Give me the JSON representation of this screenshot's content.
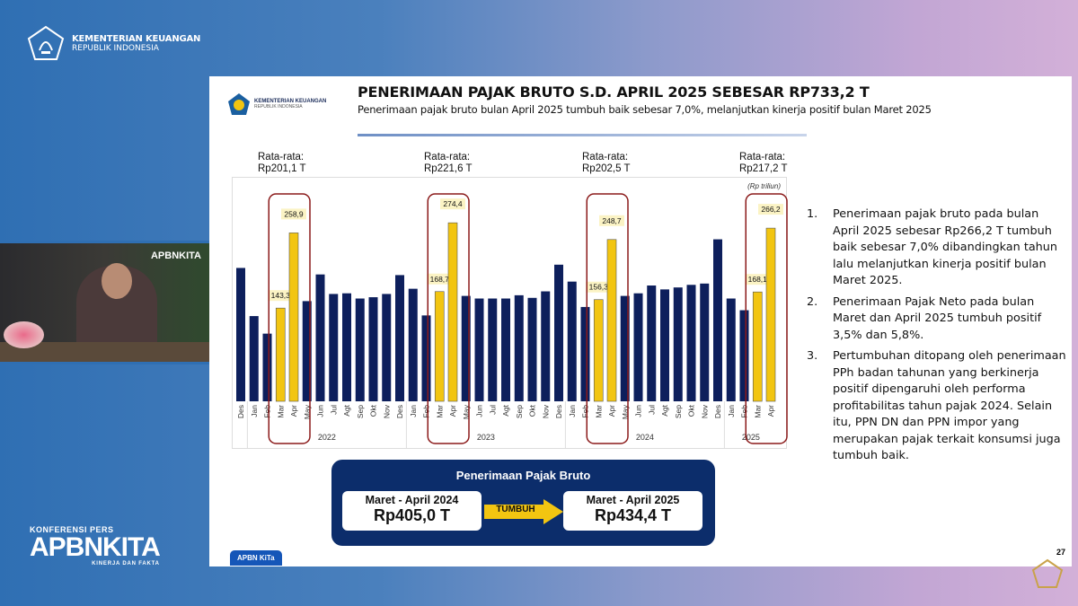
{
  "header": {
    "ministry_line1": "KEMENTERIAN KEUANGAN",
    "ministry_line2": "REPUBLIK INDONESIA"
  },
  "webcam": {
    "watermark": "APBNKITA"
  },
  "branding": {
    "konferensi": "KONFERENSI PERS",
    "apbnkita": "APBNKITA",
    "tagline": "KINERJA DAN FAKTA"
  },
  "slide": {
    "logo_line1": "KEMENTERIAN KEUANGAN",
    "logo_line2": "REPUBLIK INDONESIA",
    "title": "PENERIMAAN PAJAK BRUTO S.D. APRIL 2025 SEBESAR RP733,2 T",
    "subtitle": "Penerimaan pajak bruto bulan April 2025 tumbuh baik sebesar 7,0%, melanjutkan kinerja positif bulan Maret 2025",
    "averages": [
      {
        "label": "Rata-rata:",
        "value": "Rp201,1 T"
      },
      {
        "label": "Rata-rata:",
        "value": "Rp221,6 T"
      },
      {
        "label": "Rata-rata:",
        "value": "Rp202,5 T"
      },
      {
        "label": "Rata-rata:",
        "value": "Rp217,2 T"
      }
    ],
    "summary": {
      "title": "Penerimaan Pajak Bruto",
      "left_period": "Maret - April 2024",
      "left_value": "Rp405,0 T",
      "arrow_label": "TUMBUH",
      "right_period": "Maret - April 2025",
      "right_value": "Rp434,4 T"
    },
    "notes": [
      {
        "num": "1.",
        "text": "Penerimaan pajak bruto pada bulan April 2025 sebesar Rp266,2 T tumbuh baik sebesar 7,0% dibandingkan tahun lalu melanjutkan kinerja positif bulan Maret 2025."
      },
      {
        "num": "2.",
        "text": "Penerimaan Pajak Neto pada bulan Maret dan April 2025 tumbuh positif 3,5% dan 5,8%."
      },
      {
        "num": "3.",
        "text": "Pertumbuhan ditopang oleh penerimaan PPh badan tahunan yang berkinerja positif dipengaruhi oleh performa profitabilitas tahun pajak 2024. Selain itu, PPN DN dan PPN impor yang merupakan pajak terkait konsumsi juga tumbuh baik."
      }
    ],
    "tab_label": "APBN KiTa",
    "page_number": "27"
  },
  "chart_data": {
    "type": "bar",
    "unit_label": "(Rp triliun)",
    "categories": [
      "Des",
      "Jan",
      "Feb",
      "Mar",
      "Apr",
      "May",
      "Jun",
      "Jul",
      "Agt",
      "Sep",
      "Okt",
      "Nov",
      "Des",
      "Jan",
      "Feb",
      "Mar",
      "Apr",
      "May",
      "Jun",
      "Jul",
      "Agt",
      "Sep",
      "Okt",
      "Nov",
      "Des",
      "Jan",
      "Feb",
      "Mar",
      "Apr",
      "May",
      "Jun",
      "Jul",
      "Agt",
      "Sep",
      "Okt",
      "Nov",
      "Des",
      "Jan",
      "Feb",
      "Mar",
      "Apr"
    ],
    "years": [
      {
        "label": "2022",
        "start": 1,
        "end": 12
      },
      {
        "label": "2023",
        "start": 13,
        "end": 24
      },
      {
        "label": "2024",
        "start": 25,
        "end": 36
      },
      {
        "label": "2025",
        "start": 37,
        "end": 40
      }
    ],
    "values": [
      205,
      131,
      104,
      143.3,
      258.9,
      154,
      195,
      165,
      166,
      158,
      160,
      165,
      194,
      173,
      132,
      168.7,
      274.4,
      162,
      158,
      158,
      158,
      163,
      159,
      169,
      210,
      184,
      145,
      156.3,
      248.7,
      162,
      166,
      178,
      172,
      175,
      179,
      181,
      249,
      158,
      140,
      168.1,
      266.2
    ],
    "highlighted": [
      3,
      4,
      15,
      16,
      27,
      28,
      39,
      40
    ],
    "data_labels": {
      "3": "143,3",
      "4": "258,9",
      "15": "168,7",
      "16": "274,4",
      "27": "156,3",
      "28": "248,7",
      "39": "168,1",
      "40": "266,2"
    },
    "ylim": [
      0,
      345
    ],
    "grid": false,
    "colors": {
      "normal": "#0d1f5c",
      "highlight": "#f2c511",
      "box": "#8b1a1a",
      "label_bg": "#fbf3c4"
    }
  }
}
